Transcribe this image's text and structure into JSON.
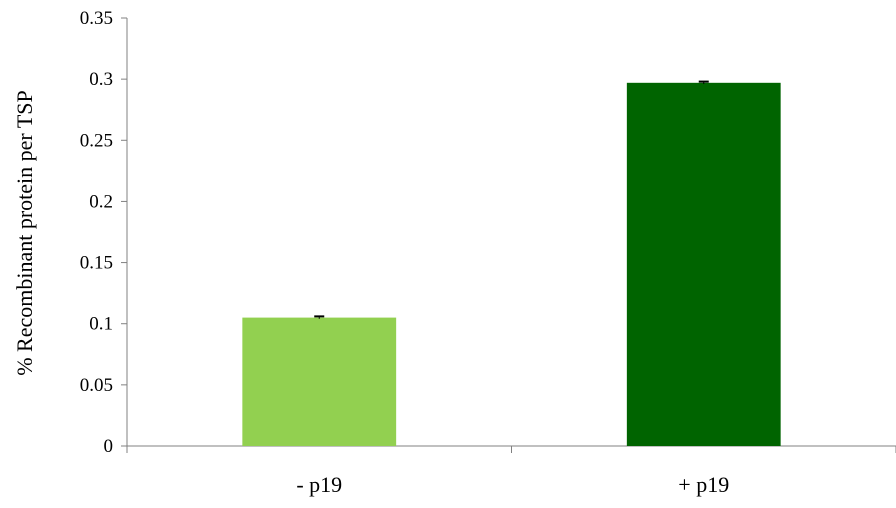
{
  "chart_data": {
    "type": "bar",
    "categories": [
      "- p19",
      "+ p19"
    ],
    "values": [
      0.105,
      0.297
    ],
    "error": [
      0.001,
      0.001
    ],
    "colors": [
      "#92d050",
      "#006400"
    ],
    "ylabel": "% Recombinant protein per TSP",
    "xlabel": "",
    "ylim": [
      0,
      0.35
    ],
    "yticks": [
      "0",
      "0.05",
      "0.1",
      "0.15",
      "0.2",
      "0.25",
      "0.3",
      "0.35"
    ],
    "yticks_values": [
      0,
      0.05,
      0.1,
      0.15,
      0.2,
      0.25,
      0.3,
      0.35
    ],
    "grid": false,
    "legend": "none"
  }
}
